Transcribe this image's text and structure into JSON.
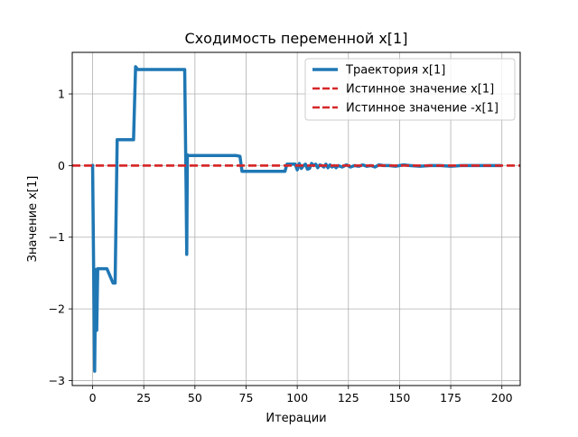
{
  "chart_data": {
    "type": "line",
    "title": "Сходимость переменной x[1]",
    "xlabel": "Итерации",
    "ylabel": "Значение x[1]",
    "xlim": [
      -9.95,
      208.95
    ],
    "ylim": [
      -3.07,
      1.58
    ],
    "xticks": [
      0,
      25,
      50,
      75,
      100,
      125,
      150,
      175,
      200
    ],
    "xtick_labels": [
      "0",
      "25",
      "50",
      "75",
      "100",
      "125",
      "150",
      "175",
      "200"
    ],
    "yticks": [
      -3,
      -2,
      -1,
      0,
      1
    ],
    "ytick_labels": [
      "−3",
      "−2",
      "−1",
      "0",
      "1"
    ],
    "grid": true,
    "legend_position": "top-right",
    "series": [
      {
        "name": "Траектория x[1]",
        "color": "#1f77b4",
        "style": "solid",
        "x": [
          0,
          1,
          1.5,
          2,
          2.5,
          5,
          7,
          10,
          11,
          12,
          20,
          21,
          22,
          45,
          45.5,
          45.7,
          46,
          46.3,
          46.8,
          70,
          72,
          73,
          85,
          94,
          95,
          99,
          100,
          101,
          102,
          103,
          104,
          105,
          106,
          107,
          108,
          109,
          110,
          111,
          112,
          113,
          114,
          115,
          116,
          117,
          118,
          119,
          120,
          122,
          124,
          126,
          128,
          130,
          132,
          134,
          136,
          138,
          140,
          142,
          145,
          148,
          150,
          152,
          155,
          160,
          165,
          170,
          175,
          180,
          185,
          190,
          195,
          199
        ],
        "y": [
          0.0,
          -2.87,
          -1.45,
          -2.3,
          -1.44,
          -1.44,
          -1.44,
          -1.64,
          -1.64,
          0.36,
          0.36,
          1.38,
          1.34,
          1.34,
          0.12,
          -0.35,
          -1.24,
          0.15,
          0.14,
          0.14,
          0.13,
          -0.08,
          -0.08,
          -0.08,
          0.02,
          0.02,
          -0.06,
          0.03,
          -0.04,
          0.0,
          0.02,
          -0.05,
          -0.04,
          0.03,
          0.0,
          0.02,
          -0.03,
          0.01,
          0.0,
          -0.02,
          0.02,
          -0.03,
          0.01,
          -0.02,
          0.0,
          -0.03,
          0.0,
          -0.02,
          0.01,
          -0.02,
          0.0,
          -0.01,
          0.01,
          -0.01,
          0.0,
          -0.02,
          0.01,
          0.0,
          0.0,
          -0.01,
          0.0,
          0.01,
          0.0,
          -0.01,
          0.0,
          0.0,
          -0.01,
          0.0,
          0.0,
          0.0,
          0.0,
          0.0
        ]
      },
      {
        "name": "Истинное значение x[1]",
        "color": "#d62728",
        "style": "dashed",
        "y_constant": 0
      },
      {
        "name": "Истинное значение -x[1]",
        "color": "#d62728",
        "style": "dashed",
        "y_constant": 0
      }
    ]
  }
}
